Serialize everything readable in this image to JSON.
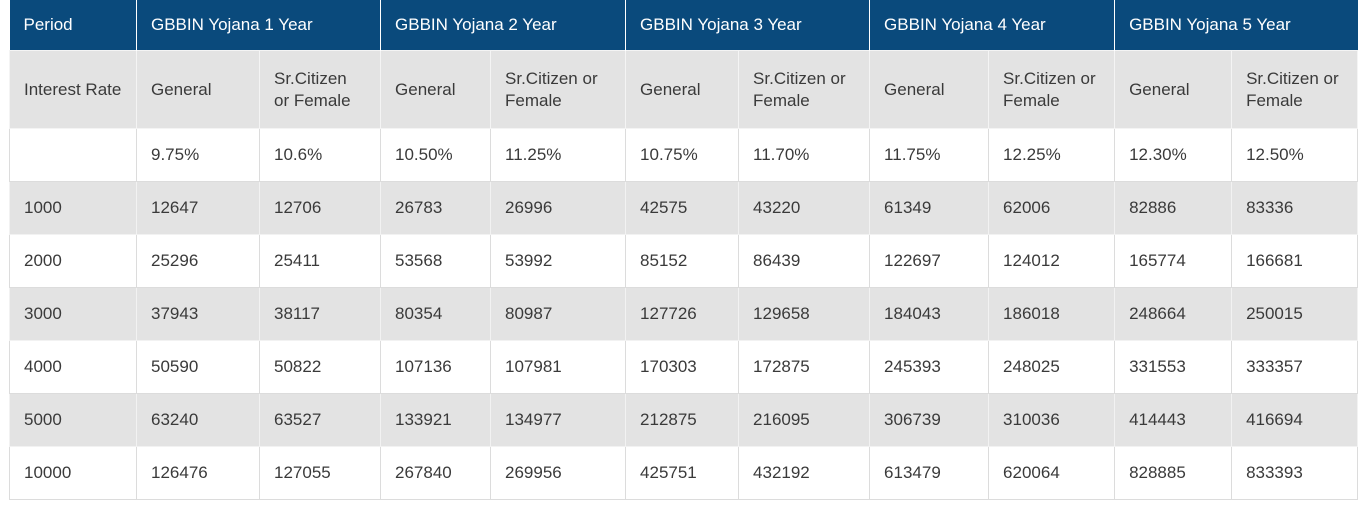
{
  "header": {
    "period": "Period",
    "groups": [
      "GBBIN Yojana 1 Year",
      "GBBIN Yojana 2 Year",
      "GBBIN Yojana 3 Year",
      "GBBIN Yojana 4 Year",
      "GBBIN Yojana 5 Year"
    ]
  },
  "subheader": {
    "first": "Interest Rate",
    "general": "General",
    "senior_short": "Sr.Citizen or Female",
    "senior": "Sr.Citizen or Female"
  },
  "rates": [
    "",
    "9.75%",
    "10.6%",
    "10.50%",
    "11.25%",
    "10.75%",
    "11.70%",
    "11.75%",
    "12.25%",
    "12.30%",
    "12.50%"
  ],
  "rows": [
    [
      "1000",
      "12647",
      "12706",
      "26783",
      "26996",
      "42575",
      "43220",
      "61349",
      "62006",
      "82886",
      "83336"
    ],
    [
      "2000",
      "25296",
      "25411",
      "53568",
      "53992",
      "85152",
      "86439",
      "122697",
      "124012",
      "165774",
      "166681"
    ],
    [
      "3000",
      "37943",
      "38117",
      "80354",
      "80987",
      "127726",
      "129658",
      "184043",
      "186018",
      "248664",
      "250015"
    ],
    [
      "4000",
      "50590",
      "50822",
      "107136",
      "107981",
      "170303",
      "172875",
      "245393",
      "248025",
      "331553",
      "333357"
    ],
    [
      "5000",
      "63240",
      "63527",
      "133921",
      "134977",
      "212875",
      "216095",
      "306739",
      "310036",
      "414443",
      "416694"
    ],
    [
      "10000",
      "126476",
      "127055",
      "267840",
      "269956",
      "425751",
      "432192",
      "613479",
      "620064",
      "828885",
      "833393"
    ]
  ],
  "colors": {
    "header_bg": "#0a4a7c",
    "header_text": "#ffffff",
    "shade_bg": "#e3e3e3",
    "text": "#3a3a3a"
  }
}
